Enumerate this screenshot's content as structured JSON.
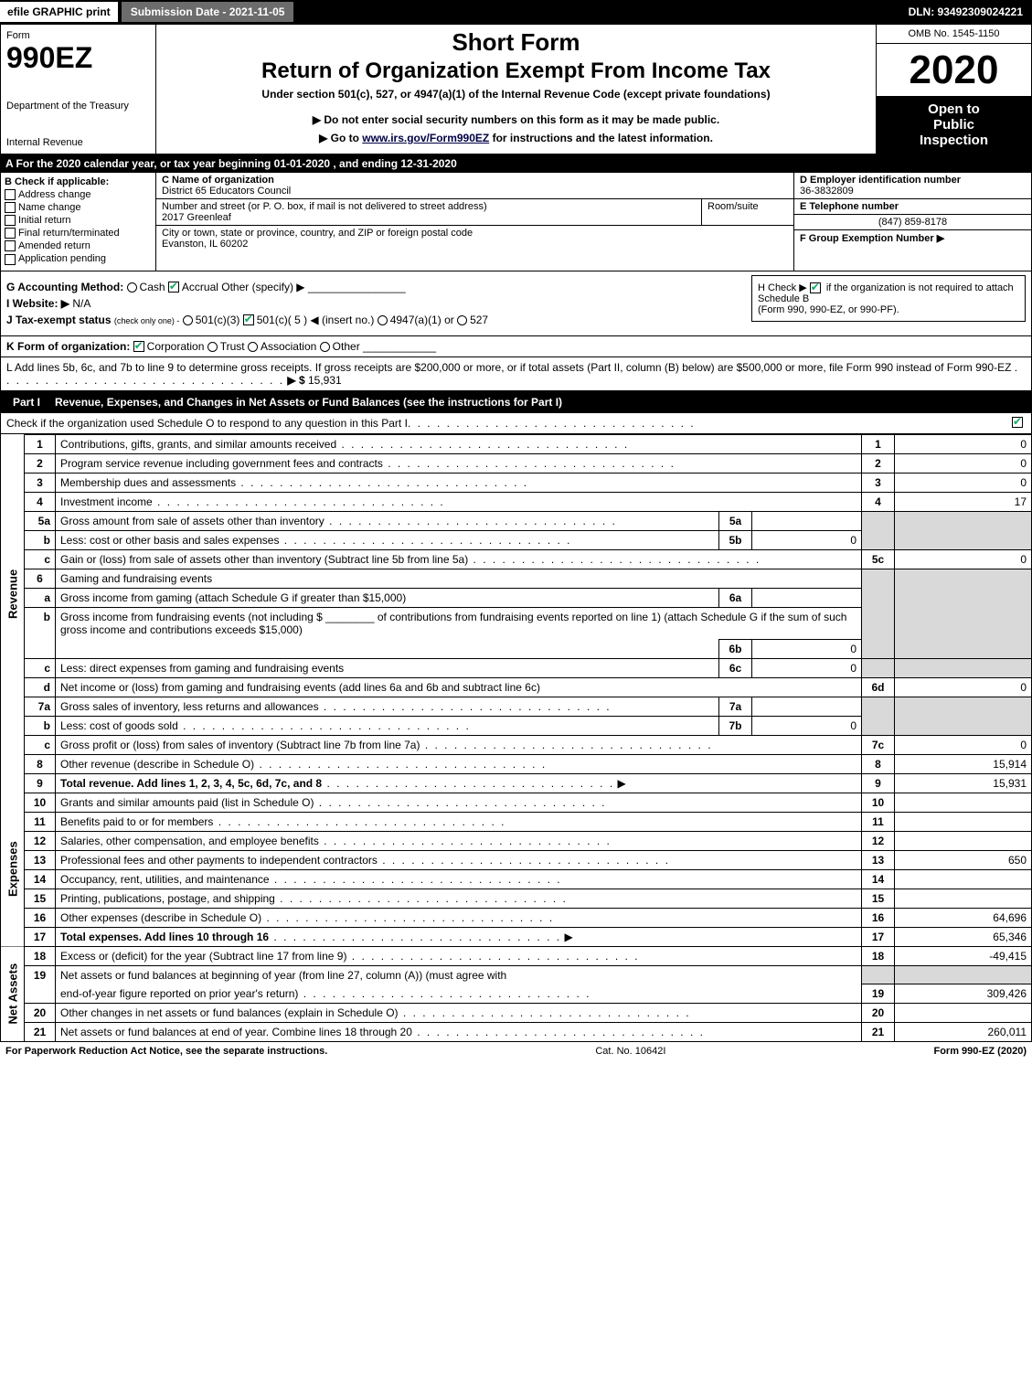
{
  "top_bar": {
    "efile": "efile GRAPHIC print",
    "submission": "Submission Date - 2021-11-05",
    "dln": "DLN: 93492309024221"
  },
  "header": {
    "form_word": "Form",
    "form_number": "990EZ",
    "dept1": "Department of the Treasury",
    "dept2": "Internal Revenue",
    "short_form": "Short Form",
    "return_title": "Return of Organization Exempt From Income Tax",
    "under_section": "Under section 501(c), 527, or 4947(a)(1) of the Internal Revenue Code (except private foundations)",
    "warn": "▶ Do not enter social security numbers on this form as it may be made public.",
    "goto_pre": "▶ Go to ",
    "goto_link": "www.irs.gov/Form990EZ",
    "goto_post": " for instructions and the latest information.",
    "omb": "OMB No. 1545-1150",
    "year": "2020",
    "open1": "Open to",
    "open2": "Public",
    "open3": "Inspection"
  },
  "cal_year": "A   For the 2020 calendar year, or tax year beginning 01-01-2020 , and ending 12-31-2020",
  "box_b": {
    "b_label": "B  Check if applicable:",
    "opts": [
      "Address change",
      "Name change",
      "Initial return",
      "Final return/terminated",
      "Amended return",
      "Application pending"
    ],
    "c_label": "C Name of organization",
    "org_name": "District 65 Educators Council",
    "street_lbl": "Number and street (or P. O. box, if mail is not delivered to street address)",
    "street": "2017 Greenleaf",
    "room_lbl": "Room/suite",
    "city_lbl": "City or town, state or province, country, and ZIP or foreign postal code",
    "city": "Evanston, IL  60202",
    "d_label": "D Employer identification number",
    "ein": "36-3832809",
    "e_label": "E Telephone number",
    "phone": "(847) 859-8178",
    "f_label": "F Group Exemption Number  ▶"
  },
  "ghj": {
    "g_label": "G Accounting Method:",
    "g_cash": "Cash",
    "g_accrual": "Accrual",
    "g_other": "Other (specify) ▶",
    "h_text1": "H  Check ▶ ",
    "h_text2": " if the organization is not required to attach Schedule B",
    "h_text3": "(Form 990, 990-EZ, or 990-PF).",
    "i_label": "I Website: ▶",
    "i_val": "N/A",
    "j_label": "J Tax-exempt status",
    "j_sub": "(check only one) -",
    "j_501c3": "501(c)(3)",
    "j_501c": "501(c)( 5 ) ◀ (insert no.)",
    "j_4947": "4947(a)(1) or",
    "j_527": "527"
  },
  "k": {
    "label": "K Form of organization:",
    "corp": "Corporation",
    "trust": "Trust",
    "assoc": "Association",
    "other": "Other"
  },
  "l": {
    "text": "L Add lines 5b, 6c, and 7b to line 9 to determine gross receipts. If gross receipts are $200,000 or more, or if total assets (Part II, column (B) below) are $500,000 or more, file Form 990 instead of Form 990-EZ",
    "arrow": "▶ $ ",
    "value": "15,931"
  },
  "part1": {
    "label": "Part I",
    "title": "Revenue, Expenses, and Changes in Net Assets or Fund Balances (see the instructions for Part I)",
    "subtitle": "Check if the organization used Schedule O to respond to any question in this Part I"
  },
  "sections": {
    "revenue": "Revenue",
    "expenses": "Expenses",
    "netassets": "Net Assets"
  },
  "lines": {
    "1": {
      "desc": "Contributions, gifts, grants, and similar amounts received",
      "val": "0"
    },
    "2": {
      "desc": "Program service revenue including government fees and contracts",
      "val": "0"
    },
    "3": {
      "desc": "Membership dues and assessments",
      "val": "0"
    },
    "4": {
      "desc": "Investment income",
      "val": "17"
    },
    "5a": {
      "desc": "Gross amount from sale of assets other than inventory",
      "val": ""
    },
    "5b": {
      "desc": "Less: cost or other basis and sales expenses",
      "val": "0"
    },
    "5c": {
      "desc": "Gain or (loss) from sale of assets other than inventory (Subtract line 5b from line 5a)",
      "val": "0"
    },
    "6": {
      "desc": "Gaming and fundraising events"
    },
    "6a": {
      "desc": "Gross income from gaming (attach Schedule G if greater than $15,000)",
      "val": ""
    },
    "6b_pre": "Gross income from fundraising events (not including $",
    "6b_mid": "of contributions from fundraising events reported on line 1) (attach Schedule G if the sum of such gross income and contributions exceeds $15,000)",
    "6b_val": "0",
    "6c": {
      "desc": "Less: direct expenses from gaming and fundraising events",
      "val": "0"
    },
    "6d": {
      "desc": "Net income or (loss) from gaming and fundraising events (add lines 6a and 6b and subtract line 6c)",
      "val": "0"
    },
    "7a": {
      "desc": "Gross sales of inventory, less returns and allowances",
      "val": ""
    },
    "7b": {
      "desc": "Less: cost of goods sold",
      "val": "0"
    },
    "7c": {
      "desc": "Gross profit or (loss) from sales of inventory (Subtract line 7b from line 7a)",
      "val": "0"
    },
    "8": {
      "desc": "Other revenue (describe in Schedule O)",
      "val": "15,914"
    },
    "9": {
      "desc": "Total revenue. Add lines 1, 2, 3, 4, 5c, 6d, 7c, and 8",
      "val": "15,931"
    },
    "10": {
      "desc": "Grants and similar amounts paid (list in Schedule O)",
      "val": ""
    },
    "11": {
      "desc": "Benefits paid to or for members",
      "val": ""
    },
    "12": {
      "desc": "Salaries, other compensation, and employee benefits",
      "val": ""
    },
    "13": {
      "desc": "Professional fees and other payments to independent contractors",
      "val": "650"
    },
    "14": {
      "desc": "Occupancy, rent, utilities, and maintenance",
      "val": ""
    },
    "15": {
      "desc": "Printing, publications, postage, and shipping",
      "val": ""
    },
    "16": {
      "desc": "Other expenses (describe in Schedule O)",
      "val": "64,696"
    },
    "17": {
      "desc": "Total expenses. Add lines 10 through 16",
      "val": "65,346"
    },
    "18": {
      "desc": "Excess or (deficit) for the year (Subtract line 17 from line 9)",
      "val": "-49,415"
    },
    "19_1": "Net assets or fund balances at beginning of year (from line 27, column (A)) (must agree with",
    "19_2": "end-of-year figure reported on prior year's return)",
    "19_val": "309,426",
    "20": {
      "desc": "Other changes in net assets or fund balances (explain in Schedule O)",
      "val": ""
    },
    "21": {
      "desc": "Net assets or fund balances at end of year. Combine lines 18 through 20",
      "val": "260,011"
    }
  },
  "footer": {
    "left": "For Paperwork Reduction Act Notice, see the separate instructions.",
    "mid": "Cat. No. 10642I",
    "right_pre": "Form ",
    "right_form": "990-EZ",
    "right_post": " (2020)"
  },
  "colors": {
    "black": "#000000",
    "white": "#ffffff",
    "grey_bar": "#6c6c6c",
    "grey_cell": "#d9d9d9",
    "check_green": "#1a6b2a"
  }
}
